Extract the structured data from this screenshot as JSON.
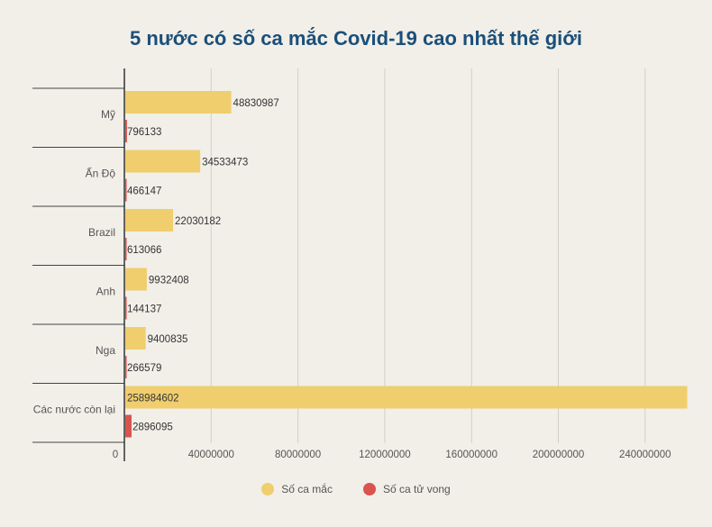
{
  "chart_data": {
    "type": "bar",
    "orientation": "horizontal",
    "title": "5 nước có số ca mắc Covid-19 cao nhất thế giới",
    "categories": [
      "Mỹ",
      "Ấn Độ",
      "Brazil",
      "Anh",
      "Nga",
      "Các nước còn lại"
    ],
    "series": [
      {
        "name": "Số ca mắc",
        "color": "#f0ce6e",
        "values": [
          48830987,
          34533473,
          22030182,
          9932408,
          9400835,
          258984602
        ]
      },
      {
        "name": "Số ca tử vong",
        "color": "#d9534f",
        "values": [
          796133,
          466147,
          613066,
          144137,
          266579,
          2896095
        ]
      }
    ],
    "xlim": [
      0,
      260000000
    ],
    "xticks": [
      0,
      40000000,
      80000000,
      120000000,
      160000000,
      200000000,
      240000000
    ],
    "xtick_labels": [
      "0",
      "40000000",
      "80000000",
      "120000000",
      "160000000",
      "200000000",
      "240000000"
    ],
    "grid": true,
    "legend_position": "bottom-center"
  }
}
